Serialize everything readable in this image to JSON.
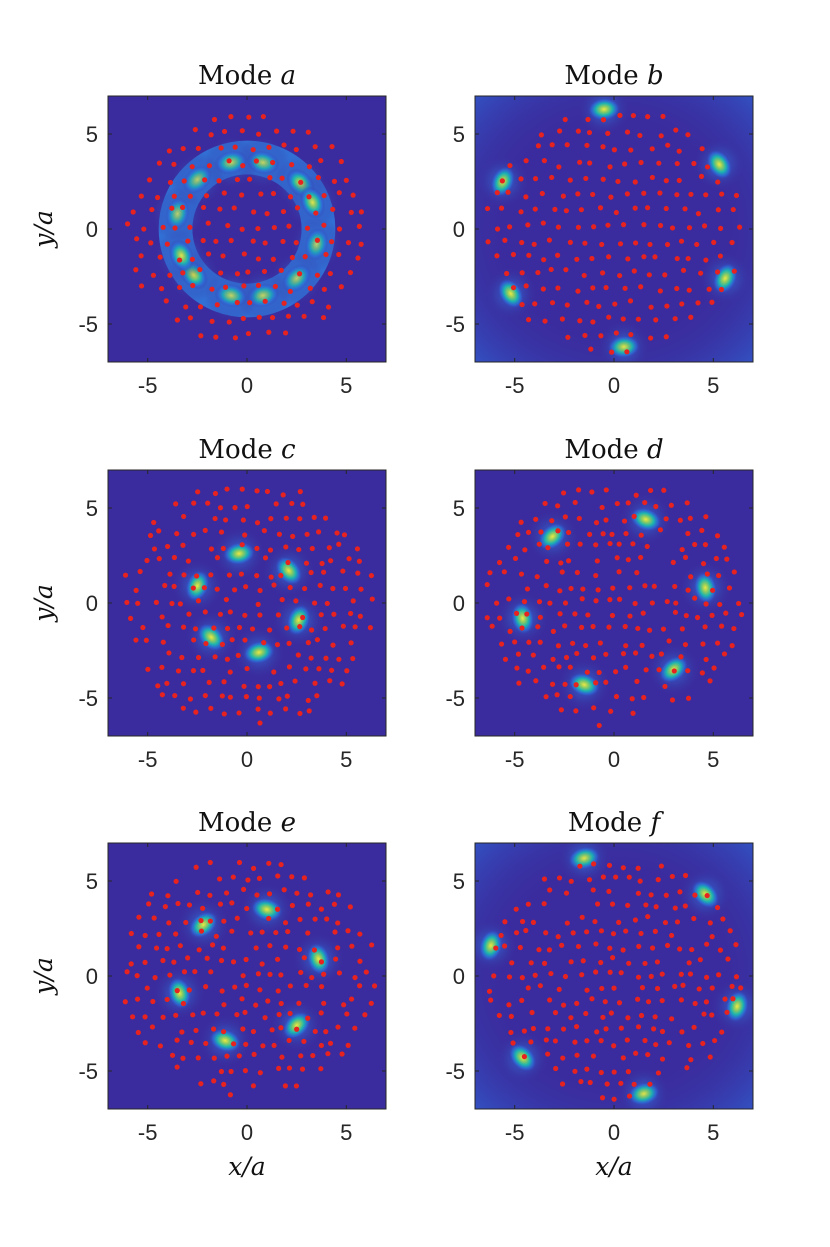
{
  "colors": {
    "background_field": "#3a2c9e",
    "low_field": "#2d6cdc",
    "mid_field": "#19b8b0",
    "high_field": "#f7ee3a",
    "scatterer": "#e8221f",
    "axis": "#262626"
  },
  "chart_data": [
    {
      "type": "heatmap",
      "title_prefix": "Mode",
      "title_var": "a",
      "xlabel": "",
      "ylabel": "y/a",
      "xlim": [
        -7,
        7
      ],
      "ylim": [
        -7,
        7
      ],
      "xticks": [
        "-5",
        "0",
        "5"
      ],
      "yticks": [
        "5",
        "0",
        "-5"
      ],
      "grid": false,
      "field_pattern": "ring",
      "hotspots": [
        {
          "x": 0.8,
          "y": 3.5,
          "intensity": 0.75
        },
        {
          "x": -0.8,
          "y": 3.5,
          "intensity": 0.75
        },
        {
          "x": 2.7,
          "y": 2.4,
          "intensity": 0.95
        },
        {
          "x": 3.3,
          "y": 1.4,
          "intensity": 0.9
        },
        {
          "x": 3.5,
          "y": -0.8,
          "intensity": 0.7
        },
        {
          "x": 2.5,
          "y": -2.6,
          "intensity": 0.7
        },
        {
          "x": 0.8,
          "y": -3.5,
          "intensity": 0.75
        },
        {
          "x": -0.8,
          "y": -3.5,
          "intensity": 0.75
        },
        {
          "x": -2.7,
          "y": -2.4,
          "intensity": 0.95
        },
        {
          "x": -3.3,
          "y": -1.4,
          "intensity": 0.9
        },
        {
          "x": -3.5,
          "y": 0.8,
          "intensity": 0.7
        },
        {
          "x": -2.5,
          "y": 2.6,
          "intensity": 0.7
        }
      ]
    },
    {
      "type": "heatmap",
      "title_prefix": "Mode",
      "title_var": "b",
      "xlabel": "",
      "ylabel": "",
      "xlim": [
        -7,
        7
      ],
      "ylim": [
        -7,
        7
      ],
      "xticks": [
        "-5",
        "0",
        "5"
      ],
      "yticks": [
        "5",
        "0",
        "-5"
      ],
      "grid": false,
      "field_pattern": "edge",
      "hotspots": [
        {
          "x": -0.5,
          "y": 6.3,
          "intensity": 0.95
        },
        {
          "x": 5.3,
          "y": 3.4,
          "intensity": 0.95
        },
        {
          "x": 5.6,
          "y": -2.6,
          "intensity": 0.95
        },
        {
          "x": 0.5,
          "y": -6.2,
          "intensity": 0.9
        },
        {
          "x": -5.2,
          "y": -3.4,
          "intensity": 0.95
        },
        {
          "x": -5.6,
          "y": 2.5,
          "intensity": 0.95
        }
      ]
    },
    {
      "type": "heatmap",
      "title_prefix": "Mode",
      "title_var": "c",
      "xlabel": "",
      "ylabel": "y/a",
      "xlim": [
        -7,
        7
      ],
      "ylim": [
        -7,
        7
      ],
      "xticks": [
        "-5",
        "0",
        "5"
      ],
      "yticks": [
        "5",
        "0",
        "-5"
      ],
      "grid": false,
      "field_pattern": "spots",
      "hotspots": [
        {
          "x": -0.4,
          "y": 2.6,
          "intensity": 0.95
        },
        {
          "x": 2.1,
          "y": 1.7,
          "intensity": 0.95
        },
        {
          "x": 2.6,
          "y": -0.9,
          "intensity": 0.95
        },
        {
          "x": 0.6,
          "y": -2.6,
          "intensity": 0.95
        },
        {
          "x": -1.8,
          "y": -1.8,
          "intensity": 0.95
        },
        {
          "x": -2.5,
          "y": 0.9,
          "intensity": 0.95
        }
      ]
    },
    {
      "type": "heatmap",
      "title_prefix": "Mode",
      "title_var": "d",
      "xlabel": "",
      "ylabel": "",
      "xlim": [
        -7,
        7
      ],
      "ylim": [
        -7,
        7
      ],
      "xticks": [
        "-5",
        "0",
        "5"
      ],
      "yticks": [
        "5",
        "0",
        "-5"
      ],
      "grid": false,
      "field_pattern": "spots",
      "hotspots": [
        {
          "x": 1.6,
          "y": 4.4,
          "intensity": 0.95
        },
        {
          "x": 4.6,
          "y": 0.8,
          "intensity": 0.95
        },
        {
          "x": 3.0,
          "y": -3.5,
          "intensity": 0.95
        },
        {
          "x": -1.5,
          "y": -4.3,
          "intensity": 0.95
        },
        {
          "x": -4.6,
          "y": -0.8,
          "intensity": 0.95
        },
        {
          "x": -3.1,
          "y": 3.5,
          "intensity": 0.95
        }
      ]
    },
    {
      "type": "heatmap",
      "title_prefix": "Mode",
      "title_var": "e",
      "xlabel": "x/a",
      "ylabel": "y/a",
      "xlim": [
        -7,
        7
      ],
      "ylim": [
        -7,
        7
      ],
      "xticks": [
        "-5",
        "0",
        "5"
      ],
      "yticks": [
        "5",
        "0",
        "-5"
      ],
      "grid": false,
      "field_pattern": "spots",
      "hotspots": [
        {
          "x": 1.0,
          "y": 3.5,
          "intensity": 0.95
        },
        {
          "x": 3.6,
          "y": 0.9,
          "intensity": 0.95
        },
        {
          "x": 2.5,
          "y": -2.6,
          "intensity": 0.95
        },
        {
          "x": -1.1,
          "y": -3.4,
          "intensity": 0.95
        },
        {
          "x": -3.4,
          "y": -0.9,
          "intensity": 0.95
        },
        {
          "x": -2.2,
          "y": 2.7,
          "intensity": 0.95
        }
      ]
    },
    {
      "type": "heatmap",
      "title_prefix": "Mode",
      "title_var": "f",
      "xlabel": "x/a",
      "ylabel": "",
      "xlim": [
        -7,
        7
      ],
      "ylim": [
        -7,
        7
      ],
      "xticks": [
        "-5",
        "0",
        "5"
      ],
      "yticks": [
        "5",
        "0",
        "-5"
      ],
      "grid": false,
      "field_pattern": "edge",
      "hotspots": [
        {
          "x": -1.5,
          "y": 6.2,
          "intensity": 0.9
        },
        {
          "x": 4.6,
          "y": 4.3,
          "intensity": 0.95
        },
        {
          "x": 6.2,
          "y": -1.6,
          "intensity": 0.95
        },
        {
          "x": 1.5,
          "y": -6.2,
          "intensity": 0.9
        },
        {
          "x": -4.6,
          "y": -4.3,
          "intensity": 0.95
        },
        {
          "x": -6.2,
          "y": 1.6,
          "intensity": 0.95
        }
      ]
    }
  ]
}
